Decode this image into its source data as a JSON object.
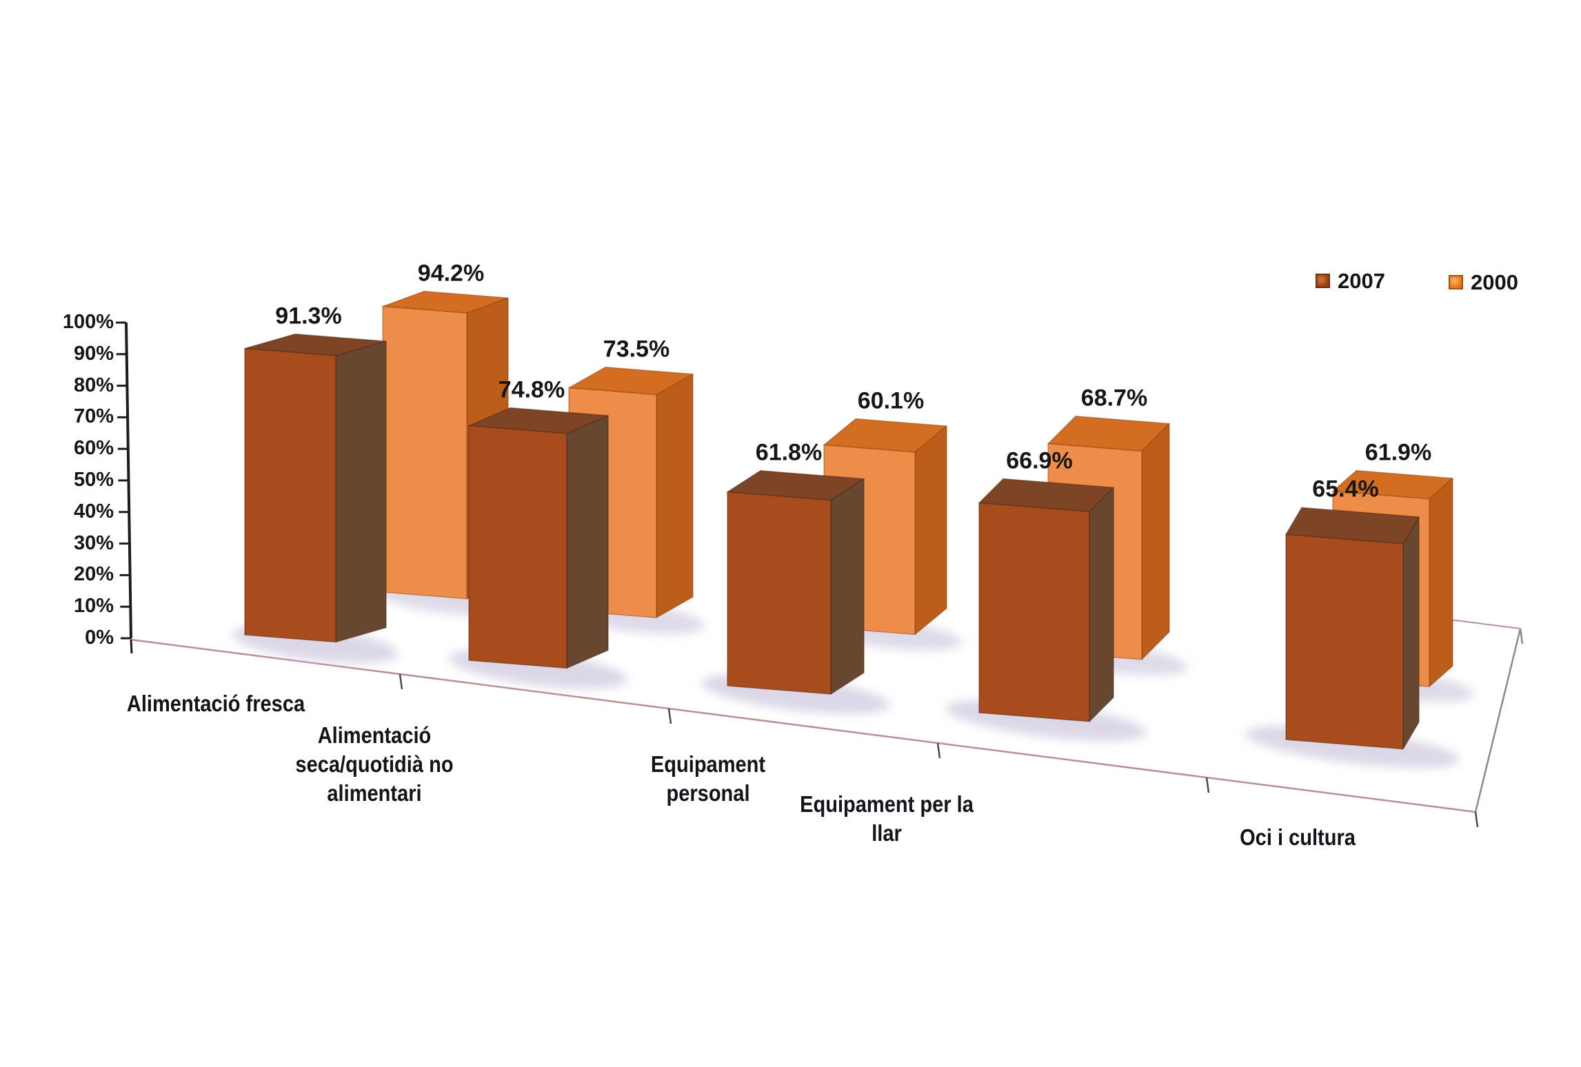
{
  "chart_data": {
    "type": "bar",
    "style": "3d-column-series-in-depth",
    "categories": [
      "Alimentació fresca",
      "Alimentació seca/quotidià no alimentari",
      "Equipament personal",
      "Equipament per la llar",
      "Oci i cultura"
    ],
    "category_label_lines": [
      [
        "Alimentació fresca"
      ],
      [
        "Alimentació",
        "seca/quotidià no",
        "alimentari"
      ],
      [
        "Equipament",
        "personal"
      ],
      [
        "Equipament per la",
        "llar"
      ],
      [
        "Oci i cultura"
      ]
    ],
    "series": [
      {
        "name": "2007",
        "values": [
          91.3,
          74.8,
          61.8,
          66.9,
          65.4
        ]
      },
      {
        "name": "2000",
        "values": [
          94.2,
          73.5,
          60.1,
          68.7,
          61.9
        ]
      }
    ],
    "data_labels": {
      "2007": [
        "91.3%",
        "74.8%",
        "61.8%",
        "66.9%",
        "65.4%"
      ],
      "2000": [
        "94.2%",
        "73.5%",
        "60.1%",
        "68.7%",
        "61.9%"
      ]
    },
    "value_suffix": "%",
    "y_axis": {
      "min": 0,
      "max": 100,
      "tick_step": 10,
      "ticks": [
        "0%",
        "10%",
        "20%",
        "30%",
        "40%",
        "50%",
        "60%",
        "70%",
        "80%",
        "90%",
        "100%"
      ]
    },
    "legend": {
      "position": "top-right",
      "entries": [
        {
          "label": "2007",
          "color": "#a84c1d"
        },
        {
          "label": "2000",
          "color": "#ef8f45"
        }
      ]
    },
    "grid": false,
    "colors": {
      "s2007": {
        "front": "#a84c1d",
        "side": "#684731",
        "top": "#7d4525"
      },
      "s2000": {
        "front": "#ee8c4a",
        "side": "#bd5d1c",
        "top": "#d26d22"
      },
      "shadow": "#c9c3da",
      "axis": "#1c1c1c",
      "floor_edge_front": "#b78f98",
      "floor_edge_side": "#8f8690"
    }
  }
}
